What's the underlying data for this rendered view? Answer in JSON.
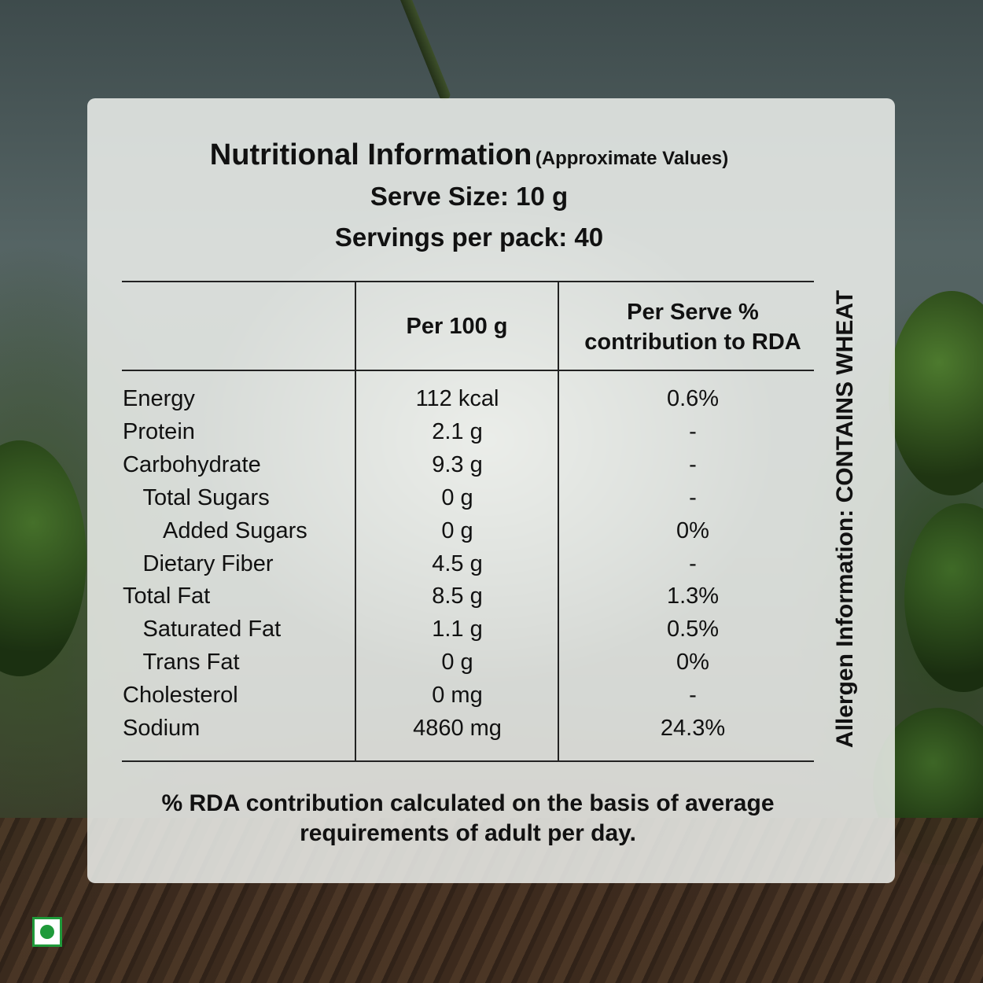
{
  "header": {
    "title": "Nutritional Information",
    "title_note": "(Approximate Values)",
    "serve_size": "Serve Size: 10 g",
    "servings_per_pack": "Servings per pack: 40"
  },
  "table": {
    "columns": [
      "",
      "Per 100 g",
      "Per Serve % contribution to RDA"
    ],
    "col_rda_line1": "Per Serve %",
    "col_rda_line2": "contribution to RDA",
    "rows": [
      {
        "name": "Energy",
        "per100": "112 kcal",
        "rda": "0.6%",
        "indent": 0
      },
      {
        "name": "Protein",
        "per100": "2.1 g",
        "rda": "-",
        "indent": 0
      },
      {
        "name": "Carbohydrate",
        "per100": "9.3 g",
        "rda": "-",
        "indent": 0
      },
      {
        "name": "Total Sugars",
        "per100": "0 g",
        "rda": "-",
        "indent": 1
      },
      {
        "name": "Added Sugars",
        "per100": "0 g",
        "rda": "0%",
        "indent": 2
      },
      {
        "name": "Dietary Fiber",
        "per100": "4.5 g",
        "rda": "-",
        "indent": 1
      },
      {
        "name": "Total Fat",
        "per100": "8.5 g",
        "rda": "1.3%",
        "indent": 0
      },
      {
        "name": "Saturated Fat",
        "per100": "1.1 g",
        "rda": "0.5%",
        "indent": 1
      },
      {
        "name": "Trans Fat",
        "per100": "0 g",
        "rda": "0%",
        "indent": 1
      },
      {
        "name": "Cholesterol",
        "per100": "0 mg",
        "rda": "-",
        "indent": 0
      },
      {
        "name": "Sodium",
        "per100": "4860 mg",
        "rda": "24.3%",
        "indent": 0
      }
    ]
  },
  "allergen": "Allergen Information: CONTAINS WHEAT",
  "footnote_line1": "% RDA contribution calculated on the basis of average",
  "footnote_line2": "requirements of adult per day.",
  "colors": {
    "card": "#eef0ec",
    "veg_mark": "#1f9a3a"
  },
  "icons": [
    "veg-mark-icon"
  ]
}
